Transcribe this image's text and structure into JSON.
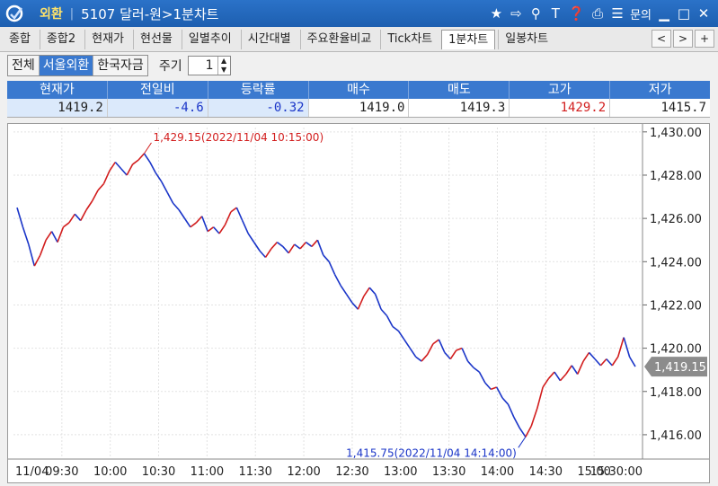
{
  "titlebar": {
    "app_name": "외환",
    "window_title": "5107 달러-원>1분차트",
    "menu_label": "문의",
    "icons": [
      "star-icon",
      "export-icon",
      "link-icon",
      "text-icon",
      "help-icon",
      "print-icon",
      "list-icon",
      "minimize-icon",
      "maximize-icon",
      "close-icon"
    ]
  },
  "tabs": [
    {
      "label": "종합"
    },
    {
      "label": "종합2"
    },
    {
      "label": "현재가"
    },
    {
      "label": "현선물"
    },
    {
      "label": "일별추이"
    },
    {
      "label": "시간대별"
    },
    {
      "label": "주요환율비교"
    },
    {
      "label": "Tick차트"
    },
    {
      "label": "1분차트",
      "active": true
    },
    {
      "label": "일봉차트"
    }
  ],
  "tabnav": {
    "prev": "<",
    "next": ">",
    "add": "+"
  },
  "toolbar": {
    "segments": [
      {
        "label": "전체"
      },
      {
        "label": "서울외환",
        "selected": true
      },
      {
        "label": "한국자금"
      }
    ],
    "period_label": "주기",
    "period_value": "1"
  },
  "quote_table": {
    "headers": [
      "현재가",
      "전일비",
      "등락률",
      "매수",
      "매도",
      "고가",
      "저가"
    ],
    "values": [
      "1419.2",
      "-4.6",
      "-0.32",
      "1419.0",
      "1419.3",
      "1429.2",
      "1415.7"
    ]
  },
  "colors": {
    "up": "#d21d1d",
    "down": "#1a35c8",
    "accent": "#3a79cf"
  },
  "chart_data": {
    "type": "line",
    "x_tick_labels": [
      "11/04",
      "09:30",
      "10:00",
      "10:30",
      "11:00",
      "11:30",
      "12:00",
      "12:30",
      "13:00",
      "13:30",
      "14:00",
      "14:30",
      "15:00",
      "15:30:00"
    ],
    "y_tick_labels": [
      "1,430.00",
      "1,428.00",
      "1,426.00",
      "1,424.00",
      "1,422.00",
      "1,420.00",
      "1,418.00",
      "1,416.00"
    ],
    "ylim": [
      1415.0,
      1430.2
    ],
    "y_ticks": [
      1430,
      1428,
      1426,
      1424,
      1422,
      1420,
      1418,
      1416
    ],
    "current_price_label": "1,419.15",
    "current_price": 1419.15,
    "annotations": [
      {
        "text": "1,429.15(2022/11/04 10:15:00)",
        "value": 1429.15,
        "kind": "high"
      },
      {
        "text": "1,415.75(2022/11/04 14:14:00)",
        "value": 1415.75,
        "kind": "low"
      }
    ],
    "series": [
      {
        "values": [
          1426.5,
          1425.6,
          1424.8,
          1423.8,
          1424.3,
          1425.0,
          1425.4,
          1424.9,
          1425.6,
          1425.8,
          1426.2,
          1425.9,
          1426.4,
          1426.8,
          1427.3,
          1427.6,
          1428.2,
          1428.6,
          1428.3,
          1428.0,
          1428.5,
          1428.7,
          1429.0,
          1428.6,
          1428.1,
          1427.7,
          1427.2,
          1426.7,
          1426.4,
          1426.0,
          1425.6,
          1425.8,
          1426.1,
          1425.4,
          1425.6,
          1425.3,
          1425.7,
          1426.3,
          1426.5,
          1425.9,
          1425.3,
          1424.9,
          1424.5,
          1424.2,
          1424.6,
          1424.9,
          1424.7,
          1424.4,
          1424.8,
          1424.6,
          1424.9,
          1424.7,
          1425.0,
          1424.3,
          1424.0,
          1423.4,
          1422.9,
          1422.5,
          1422.1,
          1421.8,
          1422.4,
          1422.8,
          1422.5,
          1421.8,
          1421.5,
          1421.0,
          1420.8,
          1420.4,
          1420.0,
          1419.6,
          1419.4,
          1419.7,
          1420.2,
          1420.4,
          1419.8,
          1419.5,
          1419.9,
          1420.0,
          1419.4,
          1419.1,
          1418.9,
          1418.4,
          1418.1,
          1418.2,
          1417.7,
          1417.4,
          1416.8,
          1416.3,
          1415.9,
          1416.4,
          1417.2,
          1418.2,
          1418.6,
          1418.9,
          1418.5,
          1418.8,
          1419.2,
          1418.8,
          1419.4,
          1419.8,
          1419.5,
          1419.2,
          1419.5,
          1419.2,
          1419.6,
          1420.5,
          1419.6,
          1419.15
        ]
      }
    ]
  }
}
